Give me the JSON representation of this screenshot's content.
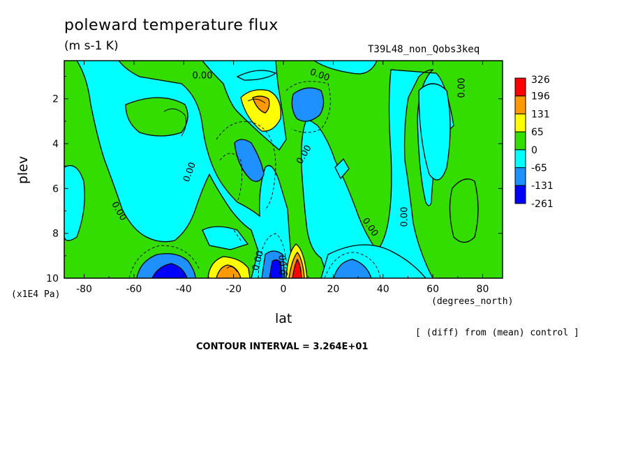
{
  "chart_data": {
    "type": "heatmap",
    "title": "poleward temperature flux",
    "units": "(m s-1 K)",
    "run_name": "T39L48_non_Qobs3keq",
    "xlabel": "lat",
    "x_unit": "(degrees_north)",
    "ylabel": "plev",
    "y_unit": "(x1E4 Pa)",
    "xlim": [
      -88,
      88
    ],
    "ylim": [
      0.3,
      10
    ],
    "y_inverted": true,
    "x_ticks": [
      -80,
      -60,
      -40,
      -20,
      0,
      20,
      40,
      60,
      80
    ],
    "y_ticks": [
      2,
      4,
      6,
      8,
      10
    ],
    "colorbar": {
      "levels": [
        "326",
        "196",
        "131",
        "65",
        "0",
        "-65",
        "-131",
        "-261"
      ],
      "colors": [
        "#ff0000",
        "#ff9900",
        "#ffff00",
        "#33dd00",
        "#00ffff",
        "#1e90ff",
        "#0000ff"
      ]
    },
    "contour_labels": [
      "0.00",
      "0.00",
      "0.00",
      "0.00",
      "0.00",
      "0.00",
      "0.00",
      "0.00",
      "0.00",
      "0.00"
    ],
    "contour_interval_text": "CONTOUR INTERVAL = 3.264E+01",
    "note": "[ (diff) from (mean) control ]",
    "features": [
      {
        "lat": -40,
        "plev": 9.7,
        "value": -150
      },
      {
        "lat": -20,
        "plev": 9.4,
        "value": 160
      },
      {
        "lat": -8,
        "plev": 2.5,
        "value": 140
      },
      {
        "lat": 8,
        "plev": 2.3,
        "value": -110
      },
      {
        "lat": -12,
        "plev": 4.5,
        "value": -110
      },
      {
        "lat": 6,
        "plev": 9.3,
        "value": 330
      },
      {
        "lat": 0,
        "plev": 9.5,
        "value": -270
      },
      {
        "lat": 25,
        "plev": 9.4,
        "value": -90
      },
      {
        "lat": 80,
        "plev": 4,
        "value": 20
      }
    ]
  }
}
